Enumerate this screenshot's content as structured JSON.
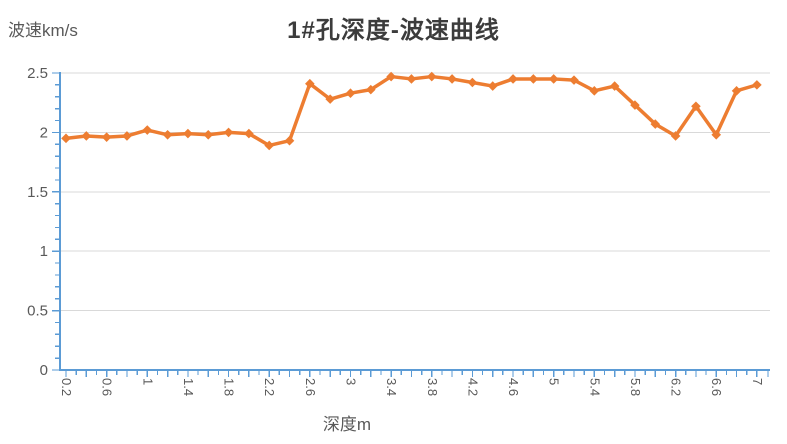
{
  "chart_data": {
    "type": "line",
    "title": "1#孔深度-波速曲线",
    "ylabel": "波速km/s",
    "xlabel": "深度m",
    "x": [
      0.2,
      0.4,
      0.6,
      0.8,
      1.0,
      1.2,
      1.4,
      1.6,
      1.8,
      2.0,
      2.2,
      2.4,
      2.6,
      2.8,
      3.0,
      3.2,
      3.4,
      3.6,
      3.8,
      4.0,
      4.2,
      4.4,
      4.6,
      4.8,
      5.0,
      5.2,
      5.4,
      5.6,
      5.8,
      6.0,
      6.2,
      6.4,
      6.6,
      6.8,
      7.0
    ],
    "values": [
      1.95,
      1.97,
      1.96,
      1.97,
      2.02,
      1.98,
      1.99,
      1.98,
      2.0,
      1.99,
      1.89,
      1.93,
      2.41,
      2.28,
      2.33,
      2.36,
      2.47,
      2.45,
      2.47,
      2.45,
      2.42,
      2.39,
      2.45,
      2.45,
      2.45,
      2.44,
      2.35,
      2.39,
      2.23,
      2.07,
      1.97,
      2.22,
      1.98,
      2.35,
      2.4
    ],
    "ylim": [
      0,
      2.5
    ],
    "yticks": [
      0,
      0.5,
      1,
      1.5,
      2,
      2.5
    ],
    "ytick_labels": [
      "0",
      "0.5",
      "1",
      "1.5",
      "2",
      "2.5"
    ],
    "xtick_labels": [
      "0.2",
      "0.6",
      "1",
      "1.4",
      "1.8",
      "2.2",
      "2.6",
      "3",
      "3.4",
      "3.8",
      "4.2",
      "4.6",
      "5",
      "5.4",
      "5.8",
      "6.2",
      "6.6",
      "7"
    ],
    "grid": true,
    "legend": "none",
    "marker": "diamond",
    "colors": {
      "series": "#ED7D31",
      "axis": "#5B9BD5",
      "grid": "#D9D9D9",
      "tick_text": "#595959",
      "title_text": "#3C3C3C",
      "background": "#FFFFFF"
    }
  }
}
